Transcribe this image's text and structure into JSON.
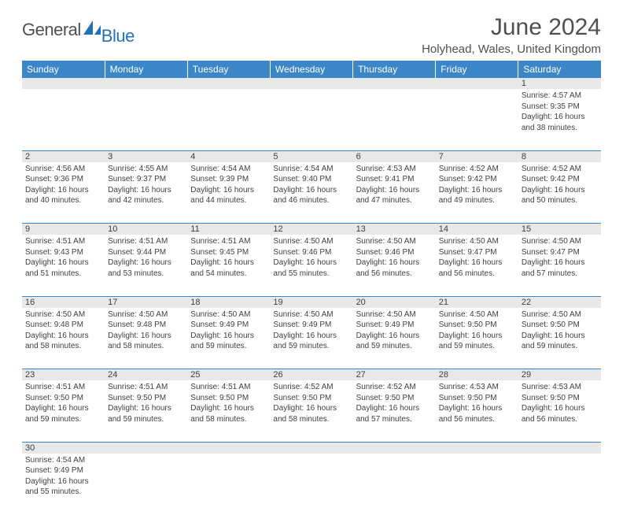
{
  "brand": {
    "part1": "General",
    "part2": "Blue",
    "color1": "#505050",
    "color2": "#2571b8",
    "sail_color": "#2571b8"
  },
  "title": "June 2024",
  "location": "Holyhead, Wales, United Kingdom",
  "header_bg": "#3b86c6",
  "header_fg": "#ffffff",
  "daynum_bg": "#e8e8e8",
  "divider_color": "#3b86c6",
  "text_color": "#404040",
  "days": [
    "Sunday",
    "Monday",
    "Tuesday",
    "Wednesday",
    "Thursday",
    "Friday",
    "Saturday"
  ],
  "weeks": [
    [
      null,
      null,
      null,
      null,
      null,
      null,
      {
        "n": "1",
        "sunrise": "4:57 AM",
        "sunset": "9:35 PM",
        "daylight": "16 hours and 38 minutes."
      }
    ],
    [
      {
        "n": "2",
        "sunrise": "4:56 AM",
        "sunset": "9:36 PM",
        "daylight": "16 hours and 40 minutes."
      },
      {
        "n": "3",
        "sunrise": "4:55 AM",
        "sunset": "9:37 PM",
        "daylight": "16 hours and 42 minutes."
      },
      {
        "n": "4",
        "sunrise": "4:54 AM",
        "sunset": "9:39 PM",
        "daylight": "16 hours and 44 minutes."
      },
      {
        "n": "5",
        "sunrise": "4:54 AM",
        "sunset": "9:40 PM",
        "daylight": "16 hours and 46 minutes."
      },
      {
        "n": "6",
        "sunrise": "4:53 AM",
        "sunset": "9:41 PM",
        "daylight": "16 hours and 47 minutes."
      },
      {
        "n": "7",
        "sunrise": "4:52 AM",
        "sunset": "9:42 PM",
        "daylight": "16 hours and 49 minutes."
      },
      {
        "n": "8",
        "sunrise": "4:52 AM",
        "sunset": "9:42 PM",
        "daylight": "16 hours and 50 minutes."
      }
    ],
    [
      {
        "n": "9",
        "sunrise": "4:51 AM",
        "sunset": "9:43 PM",
        "daylight": "16 hours and 51 minutes."
      },
      {
        "n": "10",
        "sunrise": "4:51 AM",
        "sunset": "9:44 PM",
        "daylight": "16 hours and 53 minutes."
      },
      {
        "n": "11",
        "sunrise": "4:51 AM",
        "sunset": "9:45 PM",
        "daylight": "16 hours and 54 minutes."
      },
      {
        "n": "12",
        "sunrise": "4:50 AM",
        "sunset": "9:46 PM",
        "daylight": "16 hours and 55 minutes."
      },
      {
        "n": "13",
        "sunrise": "4:50 AM",
        "sunset": "9:46 PM",
        "daylight": "16 hours and 56 minutes."
      },
      {
        "n": "14",
        "sunrise": "4:50 AM",
        "sunset": "9:47 PM",
        "daylight": "16 hours and 56 minutes."
      },
      {
        "n": "15",
        "sunrise": "4:50 AM",
        "sunset": "9:47 PM",
        "daylight": "16 hours and 57 minutes."
      }
    ],
    [
      {
        "n": "16",
        "sunrise": "4:50 AM",
        "sunset": "9:48 PM",
        "daylight": "16 hours and 58 minutes."
      },
      {
        "n": "17",
        "sunrise": "4:50 AM",
        "sunset": "9:48 PM",
        "daylight": "16 hours and 58 minutes."
      },
      {
        "n": "18",
        "sunrise": "4:50 AM",
        "sunset": "9:49 PM",
        "daylight": "16 hours and 59 minutes."
      },
      {
        "n": "19",
        "sunrise": "4:50 AM",
        "sunset": "9:49 PM",
        "daylight": "16 hours and 59 minutes."
      },
      {
        "n": "20",
        "sunrise": "4:50 AM",
        "sunset": "9:49 PM",
        "daylight": "16 hours and 59 minutes."
      },
      {
        "n": "21",
        "sunrise": "4:50 AM",
        "sunset": "9:50 PM",
        "daylight": "16 hours and 59 minutes."
      },
      {
        "n": "22",
        "sunrise": "4:50 AM",
        "sunset": "9:50 PM",
        "daylight": "16 hours and 59 minutes."
      }
    ],
    [
      {
        "n": "23",
        "sunrise": "4:51 AM",
        "sunset": "9:50 PM",
        "daylight": "16 hours and 59 minutes."
      },
      {
        "n": "24",
        "sunrise": "4:51 AM",
        "sunset": "9:50 PM",
        "daylight": "16 hours and 59 minutes."
      },
      {
        "n": "25",
        "sunrise": "4:51 AM",
        "sunset": "9:50 PM",
        "daylight": "16 hours and 58 minutes."
      },
      {
        "n": "26",
        "sunrise": "4:52 AM",
        "sunset": "9:50 PM",
        "daylight": "16 hours and 58 minutes."
      },
      {
        "n": "27",
        "sunrise": "4:52 AM",
        "sunset": "9:50 PM",
        "daylight": "16 hours and 57 minutes."
      },
      {
        "n": "28",
        "sunrise": "4:53 AM",
        "sunset": "9:50 PM",
        "daylight": "16 hours and 56 minutes."
      },
      {
        "n": "29",
        "sunrise": "4:53 AM",
        "sunset": "9:50 PM",
        "daylight": "16 hours and 56 minutes."
      }
    ],
    [
      {
        "n": "30",
        "sunrise": "4:54 AM",
        "sunset": "9:49 PM",
        "daylight": "16 hours and 55 minutes."
      },
      null,
      null,
      null,
      null,
      null,
      null
    ]
  ],
  "labels": {
    "sunrise": "Sunrise:",
    "sunset": "Sunset:",
    "daylight": "Daylight:"
  }
}
